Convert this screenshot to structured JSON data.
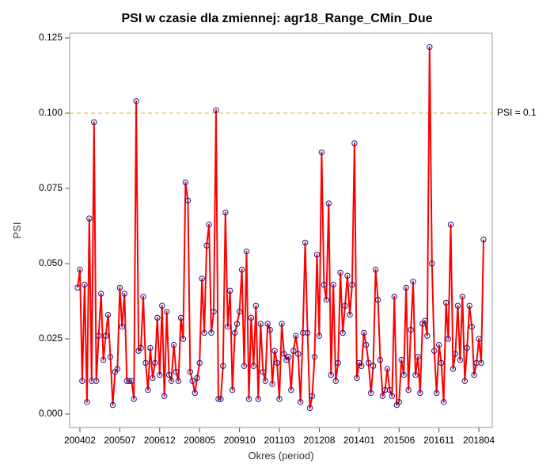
{
  "chart_data": {
    "type": "line",
    "title": "PSI w czasie dla zmiennej: agr18_Range_CMin_Due",
    "xlabel": "Okres (period)",
    "ylabel": "PSI",
    "ylim": [
      0,
      0.125
    ],
    "y_ticks": [
      "0.000",
      "0.025",
      "0.050",
      "0.075",
      "0.100",
      "0.125"
    ],
    "y_tick_values": [
      0,
      0.025,
      0.05,
      0.075,
      0.1,
      0.125
    ],
    "x_tick_labels": [
      "200402",
      "200507",
      "200612",
      "200805",
      "200910",
      "201103",
      "201208",
      "201401",
      "201506",
      "201611",
      "201804"
    ],
    "x_start_period": "200401",
    "x_end_period": "201806",
    "line_color": "#ff0000",
    "marker_color": "#1a1a8c",
    "reference_line": {
      "value": 0.1,
      "label": "PSI = 0.1",
      "color": "#f5b942"
    },
    "series": [
      {
        "values": [
          0.042,
          0.048,
          0.011,
          0.043,
          0.004,
          0.065,
          0.011,
          0.097,
          0.011,
          0.026,
          0.04,
          0.018,
          0.026,
          0.033,
          0.019,
          0.003,
          0.014,
          0.015,
          0.042,
          0.029,
          0.04,
          0.011,
          0.011,
          0.011,
          0.005,
          0.104,
          0.021,
          0.022,
          0.039,
          0.017,
          0.008,
          0.022,
          0.012,
          0.017,
          0.032,
          0.013,
          0.036,
          0.006,
          0.034,
          0.013,
          0.011,
          0.023,
          0.014,
          0.011,
          0.032,
          0.025,
          0.077,
          0.071,
          0.014,
          0.011,
          0.007,
          0.012,
          0.017,
          0.045,
          0.027,
          0.056,
          0.063,
          0.027,
          0.034,
          0.101,
          0.005,
          0.005,
          0.016,
          0.067,
          0.029,
          0.041,
          0.008,
          0.027,
          0.03,
          0.034,
          0.048,
          0.016,
          0.054,
          0.005,
          0.032,
          0.016,
          0.036,
          0.005,
          0.03,
          0.014,
          0.011,
          0.03,
          0.028,
          0.01,
          0.021,
          0.017,
          0.005,
          0.03,
          0.02,
          0.018,
          0.019,
          0.008,
          0.021,
          0.026,
          0.02,
          0.004,
          0.027,
          0.057,
          0.027,
          0.002,
          0.006,
          0.019,
          0.053,
          0.026,
          0.087,
          0.043,
          0.038,
          0.07,
          0.013,
          0.043,
          0.011,
          0.017,
          0.047,
          0.027,
          0.036,
          0.046,
          0.033,
          0.043,
          0.09,
          0.012,
          0.017,
          0.016,
          0.027,
          0.023,
          0.017,
          0.007,
          0.016,
          0.048,
          0.038,
          0.018,
          0.006,
          0.008,
          0.015,
          0.008,
          0.006,
          0.039,
          0.003,
          0.004,
          0.018,
          0.013,
          0.042,
          0.008,
          0.028,
          0.044,
          0.013,
          0.019,
          0.007,
          0.03,
          0.031,
          0.026,
          0.122,
          0.05,
          0.021,
          0.007,
          0.023,
          0.017,
          0.004,
          0.037,
          0.025,
          0.063,
          0.015,
          0.02,
          0.036,
          0.018,
          0.039,
          0.011,
          0.022,
          0.036,
          0.029,
          0.013,
          0.017,
          0.025,
          0.017,
          0.058
        ]
      }
    ]
  }
}
